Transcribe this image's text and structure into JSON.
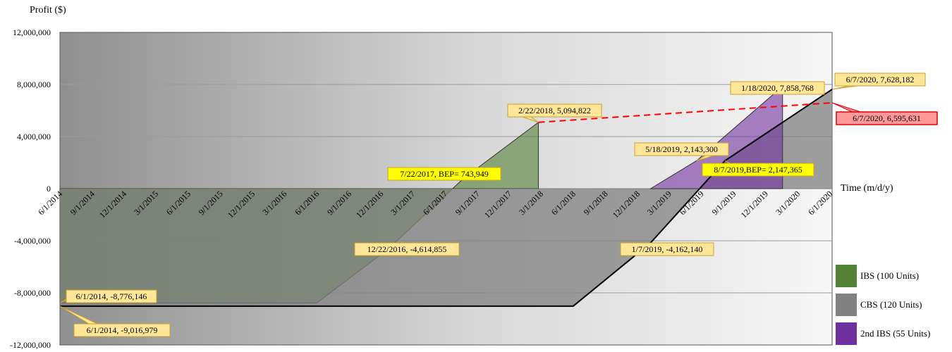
{
  "chart_data": {
    "type": "area",
    "ylabel": "Profit ($)",
    "xlabel": "Time (m/d/y)",
    "ylim": [
      -12000000,
      12000000
    ],
    "yticks": [
      {
        "value": 12000000,
        "label": "12,000,000"
      },
      {
        "value": 8000000,
        "label": "8,000,000"
      },
      {
        "value": 4000000,
        "label": "4,000,000"
      },
      {
        "value": 0,
        "label": "0"
      },
      {
        "value": -4000000,
        "label": "-4,000,000"
      },
      {
        "value": -8000000,
        "label": "-8,000,000"
      },
      {
        "value": -12000000,
        "label": "-12,000,000"
      }
    ],
    "xlim": [
      "2014-06-01",
      "2020-06-07"
    ],
    "xticks": [
      {
        "date": "2014-06-01",
        "label": "6/1/2014"
      },
      {
        "date": "2014-09-01",
        "label": "9/1/2014"
      },
      {
        "date": "2014-12-01",
        "label": "12/1/2014"
      },
      {
        "date": "2015-03-01",
        "label": "3/1/2015"
      },
      {
        "date": "2015-06-01",
        "label": "6/1/2015"
      },
      {
        "date": "2015-09-01",
        "label": "9/1/2015"
      },
      {
        "date": "2015-12-01",
        "label": "12/1/2015"
      },
      {
        "date": "2016-03-01",
        "label": "3/1/2016"
      },
      {
        "date": "2016-06-01",
        "label": "6/1/2016"
      },
      {
        "date": "2016-09-01",
        "label": "9/1/2016"
      },
      {
        "date": "2016-12-01",
        "label": "12/1/2016"
      },
      {
        "date": "2017-03-01",
        "label": "3/1/2017"
      },
      {
        "date": "2017-06-01",
        "label": "6/1/2017"
      },
      {
        "date": "2017-09-01",
        "label": "9/1/2017"
      },
      {
        "date": "2017-12-01",
        "label": "12/1/2017"
      },
      {
        "date": "2018-03-01",
        "label": "3/1/2018"
      },
      {
        "date": "2018-06-01",
        "label": "6/1/2018"
      },
      {
        "date": "2018-09-01",
        "label": "9/1/2018"
      },
      {
        "date": "2018-12-01",
        "label": "12/1/2018"
      },
      {
        "date": "2019-03-01",
        "label": "3/1/2019"
      },
      {
        "date": "2019-06-01",
        "label": "6/1/2019"
      },
      {
        "date": "2019-09-01",
        "label": "9/1/2019"
      },
      {
        "date": "2019-12-01",
        "label": "12/1/2019"
      },
      {
        "date": "2020-03-01",
        "label": "3/1/2020"
      },
      {
        "date": "2020-06-01",
        "label": "6/1/2020"
      }
    ],
    "grid": true,
    "legend_position": "bottom-right",
    "series": [
      {
        "name": "IBS (100 Units)",
        "color": "#548235",
        "points": [
          {
            "x": "2014-06-01",
            "y": -8776146
          },
          {
            "x": "2016-06-01",
            "y": -8776146
          },
          {
            "x": "2016-12-22",
            "y": -4614855
          },
          {
            "x": "2017-07-22",
            "y": 743949
          },
          {
            "x": "2018-02-22",
            "y": 5094822
          },
          {
            "x": "2018-02-22",
            "y": 0
          }
        ]
      },
      {
        "name": "CBS (120 Units)",
        "color": "#808080",
        "points": [
          {
            "x": "2014-06-01",
            "y": -9016979
          },
          {
            "x": "2018-06-01",
            "y": -9016979
          },
          {
            "x": "2019-01-07",
            "y": -4162140
          },
          {
            "x": "2019-08-07",
            "y": 2147365
          },
          {
            "x": "2020-06-07",
            "y": 7628182
          }
        ]
      },
      {
        "name": "2nd IBS (55 Units)",
        "color": "#7030a0",
        "points": [
          {
            "x": "2019-01-07",
            "y": 0
          },
          {
            "x": "2019-05-18",
            "y": 2143300
          },
          {
            "x": "2020-01-18",
            "y": 7858768
          },
          {
            "x": "2020-01-18",
            "y": 0
          }
        ]
      }
    ],
    "trend_line": {
      "color": "#ff0000",
      "points": [
        {
          "x": "2018-02-22",
          "y": 5094822
        },
        {
          "x": "2020-06-07",
          "y": 6595631
        }
      ]
    },
    "annotations": [
      {
        "text": "6/1/2014, -8,776,146",
        "x": "2014-06-01",
        "y": -8776146,
        "style": "yellow"
      },
      {
        "text": "6/1/2014, -9,016,979",
        "x": "2014-06-01",
        "y": -9016979,
        "style": "yellow"
      },
      {
        "text": "12/22/2016, -4,614,855",
        "x": "2016-12-22",
        "y": -4614855,
        "style": "yellow"
      },
      {
        "text": "7/22/2017, BEP= 743,949",
        "x": "2017-07-22",
        "y": 743949,
        "style": "bright"
      },
      {
        "text": "2/22/2018, 5,094,822",
        "x": "2018-02-22",
        "y": 5094822,
        "style": "yellow"
      },
      {
        "text": "1/7/2019, -4,162,140",
        "x": "2019-01-07",
        "y": -4162140,
        "style": "yellow"
      },
      {
        "text": "5/18/2019, 2,143,300",
        "x": "2019-05-18",
        "y": 2143300,
        "style": "yellow"
      },
      {
        "text": "8/7/2019,BEP= 2,147,365",
        "x": "2019-08-07",
        "y": 2147365,
        "style": "bright"
      },
      {
        "text": "1/18/2020, 7,858,768",
        "x": "2020-01-18",
        "y": 7858768,
        "style": "yellow"
      },
      {
        "text": "6/7/2020, 7,628,182",
        "x": "2020-06-07",
        "y": 7628182,
        "style": "yellow"
      },
      {
        "text": "6/7/2020, 6,595,631",
        "x": "2020-06-07",
        "y": 6595631,
        "style": "red"
      }
    ]
  }
}
